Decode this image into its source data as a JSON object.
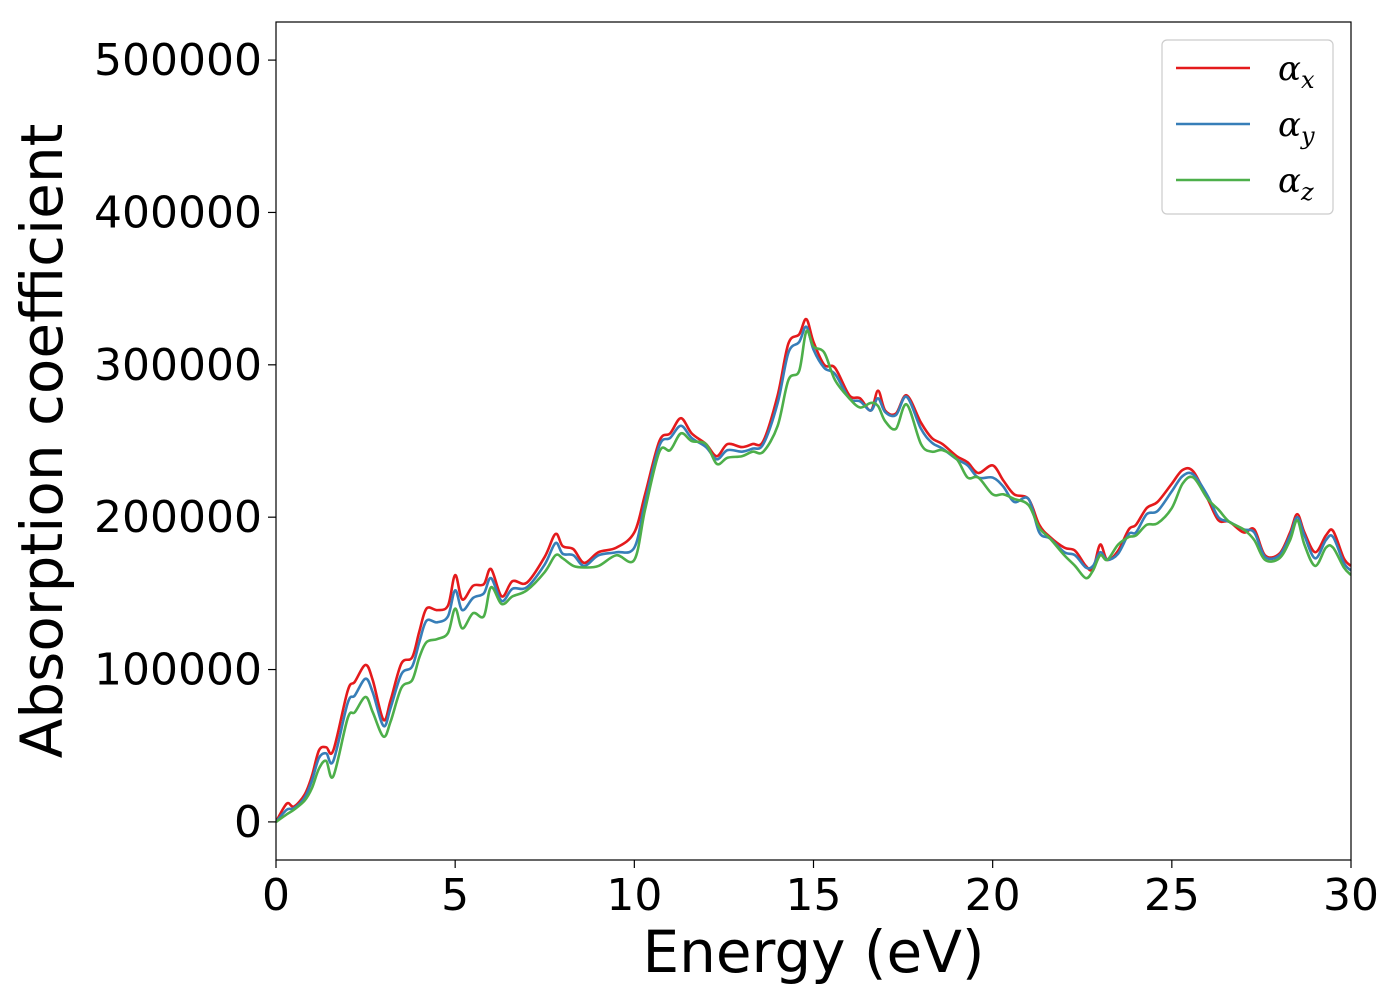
{
  "chart_data": {
    "type": "line",
    "title": "",
    "xlabel": "Energy (eV)",
    "ylabel": "Absorption coefficient",
    "xlim": [
      0,
      30
    ],
    "ylim": [
      -25000,
      525000
    ],
    "xticks": [
      0,
      5,
      10,
      15,
      20,
      25,
      30
    ],
    "yticks": [
      0,
      100000,
      200000,
      300000,
      400000,
      500000
    ],
    "grid": false,
    "legend_position": "top-right",
    "series": [
      {
        "name": "α_x",
        "label_base": "α",
        "label_sub": "x",
        "color": "#e41a1c",
        "x": [
          0,
          0.3,
          0.5,
          0.8,
          1.0,
          1.2,
          1.4,
          1.6,
          2.0,
          2.2,
          2.5,
          2.7,
          3.0,
          3.2,
          3.5,
          3.8,
          4.0,
          4.2,
          4.5,
          4.8,
          5.0,
          5.2,
          5.5,
          5.8,
          6.0,
          6.3,
          6.6,
          7.0,
          7.5,
          7.8,
          8.0,
          8.3,
          8.6,
          9.0,
          9.5,
          10.0,
          10.3,
          10.7,
          11.0,
          11.3,
          11.6,
          12.0,
          12.3,
          12.6,
          13.0,
          13.3,
          13.6,
          14.0,
          14.3,
          14.6,
          14.8,
          15.0,
          15.3,
          15.6,
          16.0,
          16.3,
          16.6,
          16.8,
          17.0,
          17.3,
          17.6,
          18.0,
          18.3,
          18.6,
          19.0,
          19.3,
          19.6,
          20.0,
          20.3,
          20.6,
          21.0,
          21.3,
          21.6,
          22.0,
          22.3,
          22.6,
          22.8,
          23.0,
          23.2,
          23.5,
          23.8,
          24.0,
          24.3,
          24.6,
          25.0,
          25.3,
          25.6,
          26.0,
          26.3,
          26.6,
          27.0,
          27.3,
          27.6,
          28.0,
          28.3,
          28.5,
          28.7,
          29.0,
          29.3,
          29.5,
          29.8,
          30.0
        ],
        "y": [
          0,
          12000,
          10000,
          18000,
          30000,
          47000,
          49000,
          47000,
          86000,
          92000,
          103000,
          93000,
          67000,
          80000,
          104000,
          108000,
          125000,
          140000,
          139000,
          142000,
          162000,
          146000,
          155000,
          156000,
          166000,
          148000,
          158000,
          157000,
          174000,
          189000,
          181000,
          179000,
          170000,
          177000,
          180000,
          190000,
          215000,
          250000,
          255000,
          265000,
          255000,
          248000,
          240000,
          248000,
          246000,
          248000,
          250000,
          280000,
          314000,
          320000,
          330000,
          315000,
          300000,
          298000,
          280000,
          278000,
          270000,
          283000,
          270000,
          268000,
          280000,
          262000,
          252000,
          248000,
          240000,
          236000,
          229000,
          234000,
          224000,
          215000,
          212000,
          195000,
          187000,
          180000,
          178000,
          168000,
          166000,
          182000,
          172000,
          178000,
          192000,
          195000,
          206000,
          210000,
          222000,
          231000,
          230000,
          212000,
          198000,
          197000,
          190000,
          192000,
          175000,
          176000,
          190000,
          202000,
          190000,
          177000,
          188000,
          191000,
          173000,
          168000
        ]
      },
      {
        "name": "α_y",
        "label_base": "α",
        "label_sub": "y",
        "color": "#377eb8",
        "x": [
          0,
          0.3,
          0.5,
          0.8,
          1.0,
          1.2,
          1.4,
          1.6,
          2.0,
          2.2,
          2.5,
          2.7,
          3.0,
          3.2,
          3.5,
          3.8,
          4.0,
          4.2,
          4.5,
          4.8,
          5.0,
          5.2,
          5.5,
          5.8,
          6.0,
          6.3,
          6.6,
          7.0,
          7.5,
          7.8,
          8.0,
          8.3,
          8.6,
          9.0,
          9.5,
          10.0,
          10.3,
          10.7,
          11.0,
          11.3,
          11.6,
          12.0,
          12.3,
          12.6,
          13.0,
          13.3,
          13.6,
          14.0,
          14.3,
          14.6,
          14.8,
          15.0,
          15.3,
          15.6,
          16.0,
          16.3,
          16.6,
          16.8,
          17.0,
          17.3,
          17.6,
          18.0,
          18.3,
          18.6,
          19.0,
          19.3,
          19.6,
          20.0,
          20.3,
          20.6,
          21.0,
          21.3,
          21.6,
          22.0,
          22.3,
          22.6,
          22.8,
          23.0,
          23.2,
          23.5,
          23.8,
          24.0,
          24.3,
          24.6,
          25.0,
          25.3,
          25.6,
          26.0,
          26.3,
          26.6,
          27.0,
          27.3,
          27.6,
          28.0,
          28.3,
          28.5,
          28.7,
          29.0,
          29.3,
          29.5,
          29.8,
          30.0
        ],
        "y": [
          0,
          8000,
          9000,
          16000,
          27000,
          42000,
          45000,
          40000,
          78000,
          83000,
          94000,
          85000,
          63000,
          75000,
          97000,
          102000,
          118000,
          132000,
          131000,
          135000,
          152000,
          139000,
          147000,
          150000,
          160000,
          145000,
          153000,
          154000,
          169000,
          183000,
          176000,
          175000,
          168000,
          175000,
          177000,
          180000,
          210000,
          247000,
          252000,
          260000,
          252000,
          246000,
          238000,
          244000,
          243000,
          245000,
          248000,
          275000,
          308000,
          315000,
          325000,
          310000,
          298000,
          294000,
          278000,
          276000,
          270000,
          278000,
          269000,
          267000,
          279000,
          258000,
          249000,
          245000,
          238000,
          234000,
          226000,
          226000,
          220000,
          210000,
          212000,
          190000,
          186000,
          177000,
          175000,
          167000,
          168000,
          177000,
          172000,
          176000,
          189000,
          190000,
          202000,
          204000,
          217000,
          227000,
          228000,
          214000,
          200000,
          197000,
          192000,
          190000,
          174000,
          175000,
          188000,
          200000,
          188000,
          173000,
          185000,
          187000,
          170000,
          165000
        ]
      },
      {
        "name": "α_z",
        "label_base": "α",
        "label_sub": "z",
        "color": "#4daf4a",
        "x": [
          0,
          0.3,
          0.5,
          0.8,
          1.0,
          1.2,
          1.4,
          1.6,
          2.0,
          2.2,
          2.5,
          2.7,
          3.0,
          3.2,
          3.5,
          3.8,
          4.0,
          4.2,
          4.5,
          4.8,
          5.0,
          5.2,
          5.5,
          5.8,
          6.0,
          6.3,
          6.6,
          7.0,
          7.5,
          7.8,
          8.0,
          8.3,
          8.6,
          9.0,
          9.5,
          10.0,
          10.3,
          10.7,
          11.0,
          11.3,
          11.6,
          12.0,
          12.3,
          12.6,
          13.0,
          13.3,
          13.6,
          14.0,
          14.3,
          14.6,
          14.8,
          15.0,
          15.3,
          15.6,
          16.0,
          16.3,
          16.6,
          16.8,
          17.0,
          17.3,
          17.6,
          18.0,
          18.3,
          18.6,
          19.0,
          19.3,
          19.6,
          20.0,
          20.3,
          20.6,
          21.0,
          21.3,
          21.6,
          22.0,
          22.3,
          22.6,
          22.8,
          23.0,
          23.2,
          23.5,
          23.8,
          24.0,
          24.3,
          24.6,
          25.0,
          25.3,
          25.6,
          26.0,
          26.3,
          26.6,
          27.0,
          27.3,
          27.6,
          28.0,
          28.3,
          28.5,
          28.7,
          29.0,
          29.3,
          29.5,
          29.8,
          30.0
        ],
        "y": [
          0,
          5000,
          8000,
          14000,
          22000,
          35000,
          40000,
          30000,
          68000,
          72000,
          82000,
          72000,
          56000,
          66000,
          88000,
          93000,
          108000,
          118000,
          120000,
          124000,
          140000,
          127000,
          137000,
          135000,
          154000,
          143000,
          148000,
          152000,
          164000,
          175000,
          173000,
          168000,
          167000,
          168000,
          175000,
          172000,
          205000,
          243000,
          244000,
          255000,
          250000,
          248000,
          235000,
          239000,
          240000,
          243000,
          243000,
          260000,
          290000,
          296000,
          322000,
          312000,
          308000,
          290000,
          278000,
          272000,
          275000,
          273000,
          263000,
          258000,
          274000,
          248000,
          243000,
          244000,
          238000,
          226000,
          226000,
          215000,
          215000,
          212000,
          208000,
          193000,
          186000,
          175000,
          168000,
          160000,
          165000,
          175000,
          172000,
          182000,
          187000,
          188000,
          195000,
          196000,
          206000,
          222000,
          226000,
          212000,
          205000,
          197000,
          192000,
          185000,
          172000,
          173000,
          185000,
          198000,
          182000,
          168000,
          180000,
          180000,
          167000,
          162000
        ]
      }
    ]
  }
}
